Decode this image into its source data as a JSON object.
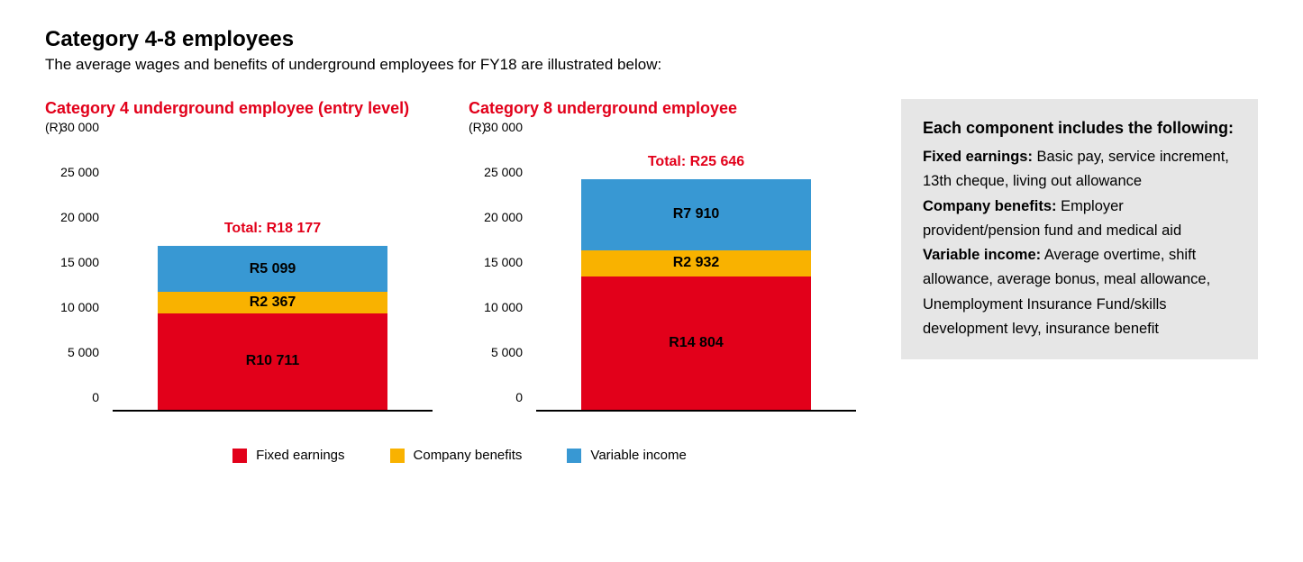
{
  "header": {
    "title": "Category 4-8 employees",
    "subtitle": "The average wages and benefits of underground employees for FY18 are illustrated below:"
  },
  "colors": {
    "fixed": "#e2001a",
    "benefits": "#f9b200",
    "variable": "#3898d3",
    "axis": "#000000",
    "info_bg": "#e6e6e6",
    "accent": "#e2001a"
  },
  "axis": {
    "ymax": 30000,
    "ytick_step": 5000,
    "unit_label": "(R)",
    "ticks": [
      "0",
      "5 000",
      "10 000",
      "15 000",
      "20 000",
      "25 000",
      "30 000"
    ]
  },
  "charts": [
    {
      "title": "Category 4 underground employee (entry level)",
      "total_label": "Total: R18 177",
      "total_value": 18177,
      "segments": [
        {
          "key": "fixed",
          "label": "R10 711",
          "value": 10711
        },
        {
          "key": "benefits",
          "label": "R2 367",
          "value": 2367
        },
        {
          "key": "variable",
          "label": "R5 099",
          "value": 5099
        }
      ]
    },
    {
      "title": "Category 8 underground employee",
      "total_label": "Total: R25 646",
      "total_value": 25646,
      "segments": [
        {
          "key": "fixed",
          "label": "R14 804",
          "value": 14804
        },
        {
          "key": "benefits",
          "label": "R2 932",
          "value": 2932
        },
        {
          "key": "variable",
          "label": "R7 910",
          "value": 7910
        }
      ]
    }
  ],
  "legend": [
    {
      "key": "fixed",
      "label": "Fixed earnings"
    },
    {
      "key": "benefits",
      "label": "Company benefits"
    },
    {
      "key": "variable",
      "label": "Variable income"
    }
  ],
  "info": {
    "title": "Each component includes the following:",
    "items": [
      {
        "term": "Fixed earnings:",
        "desc": " Basic pay, service increment, 13th cheque, living out allowance"
      },
      {
        "term": "Company benefits:",
        "desc": " Employer provident/pension fund and medical aid"
      },
      {
        "term": "Variable income:",
        "desc": " Average overtime, shift allowance, average bonus, meal allowance, Unemployment Insurance Fund/skills development levy, insurance benefit"
      }
    ]
  }
}
